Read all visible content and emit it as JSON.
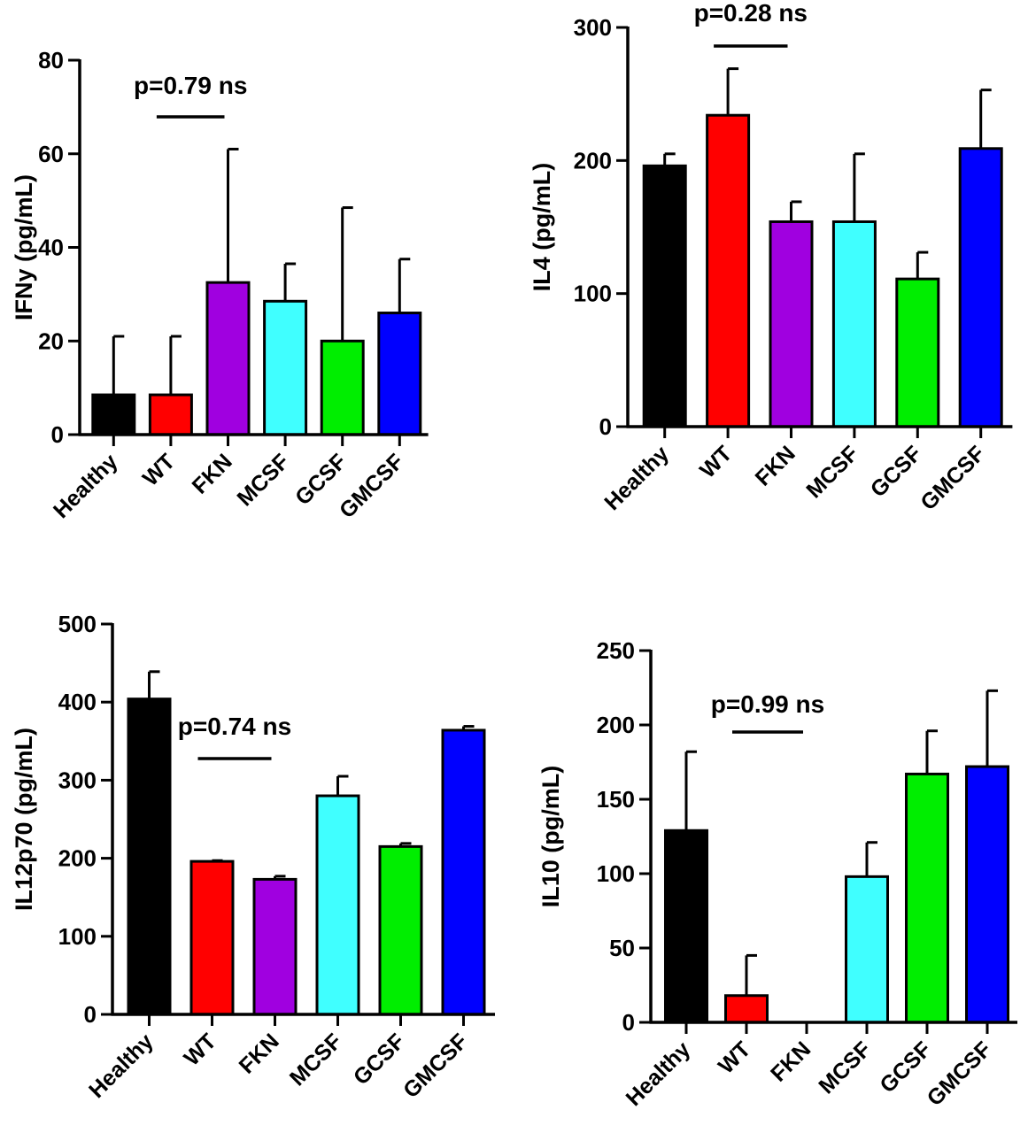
{
  "chart_data": [
    {
      "type": "bar",
      "title": "",
      "ylabel": "IFNy (pg/mL)",
      "ylim": [
        0,
        80
      ],
      "yticks": [
        0,
        20,
        40,
        60,
        80
      ],
      "categories": [
        "Healthy",
        "WT",
        "FKN",
        "MCSF",
        "GCSF",
        "GMCSF"
      ],
      "values": [
        8.5,
        8.5,
        32.5,
        28.5,
        20,
        26
      ],
      "errors": [
        12.5,
        12.5,
        28.5,
        8,
        28.5,
        11.5
      ],
      "colors": [
        "#000000",
        "#ff0000",
        "#a000e0",
        "#40ffff",
        "#00ee00",
        "#0000ff"
      ],
      "annotation": {
        "text": "p=0.79 ns",
        "from": "WT",
        "to": "FKN"
      }
    },
    {
      "type": "bar",
      "title": "",
      "ylabel": "IL4 (pg/mL)",
      "ylim": [
        0,
        300
      ],
      "yticks": [
        0,
        100,
        200,
        300
      ],
      "categories": [
        "Healthy",
        "WT",
        "FKN",
        "MCSF",
        "GCSF",
        "GMCSF"
      ],
      "values": [
        196,
        234,
        154,
        154,
        111,
        209
      ],
      "errors": [
        9,
        35,
        15,
        51,
        20,
        44
      ],
      "colors": [
        "#000000",
        "#ff0000",
        "#a000e0",
        "#40ffff",
        "#00ee00",
        "#0000ff"
      ],
      "annotation": {
        "text": "p=0.28 ns",
        "from": "WT",
        "to": "FKN"
      }
    },
    {
      "type": "bar",
      "title": "",
      "ylabel": "IL12p70 (pg/mL)",
      "ylim": [
        0,
        500
      ],
      "yticks": [
        0,
        100,
        200,
        300,
        400,
        500
      ],
      "categories": [
        "Healthy",
        "WT",
        "FKN",
        "MCSF",
        "GCSF",
        "GMCSF"
      ],
      "values": [
        404,
        196,
        173,
        280,
        215,
        364
      ],
      "errors": [
        35,
        1,
        4,
        25,
        4,
        5
      ],
      "colors": [
        "#000000",
        "#ff0000",
        "#a000e0",
        "#40ffff",
        "#00ee00",
        "#0000ff"
      ],
      "annotation": {
        "text": "p=0.74 ns",
        "from": "WT",
        "to": "FKN"
      }
    },
    {
      "type": "bar",
      "title": "",
      "ylabel": "IL10 (pg/mL)",
      "ylim": [
        0,
        250
      ],
      "yticks": [
        0,
        50,
        100,
        150,
        200,
        250
      ],
      "categories": [
        "Healthy",
        "WT",
        "FKN",
        "MCSF",
        "GCSF",
        "GMCSF"
      ],
      "values": [
        129,
        18,
        0,
        98,
        167,
        172
      ],
      "errors": [
        53,
        27,
        0,
        23,
        29,
        51
      ],
      "colors": [
        "#000000",
        "#ff0000",
        "#a000e0",
        "#40ffff",
        "#00ee00",
        "#0000ff"
      ],
      "annotation": {
        "text": "p=0.99 ns",
        "from": "WT",
        "to": "FKN"
      }
    }
  ]
}
